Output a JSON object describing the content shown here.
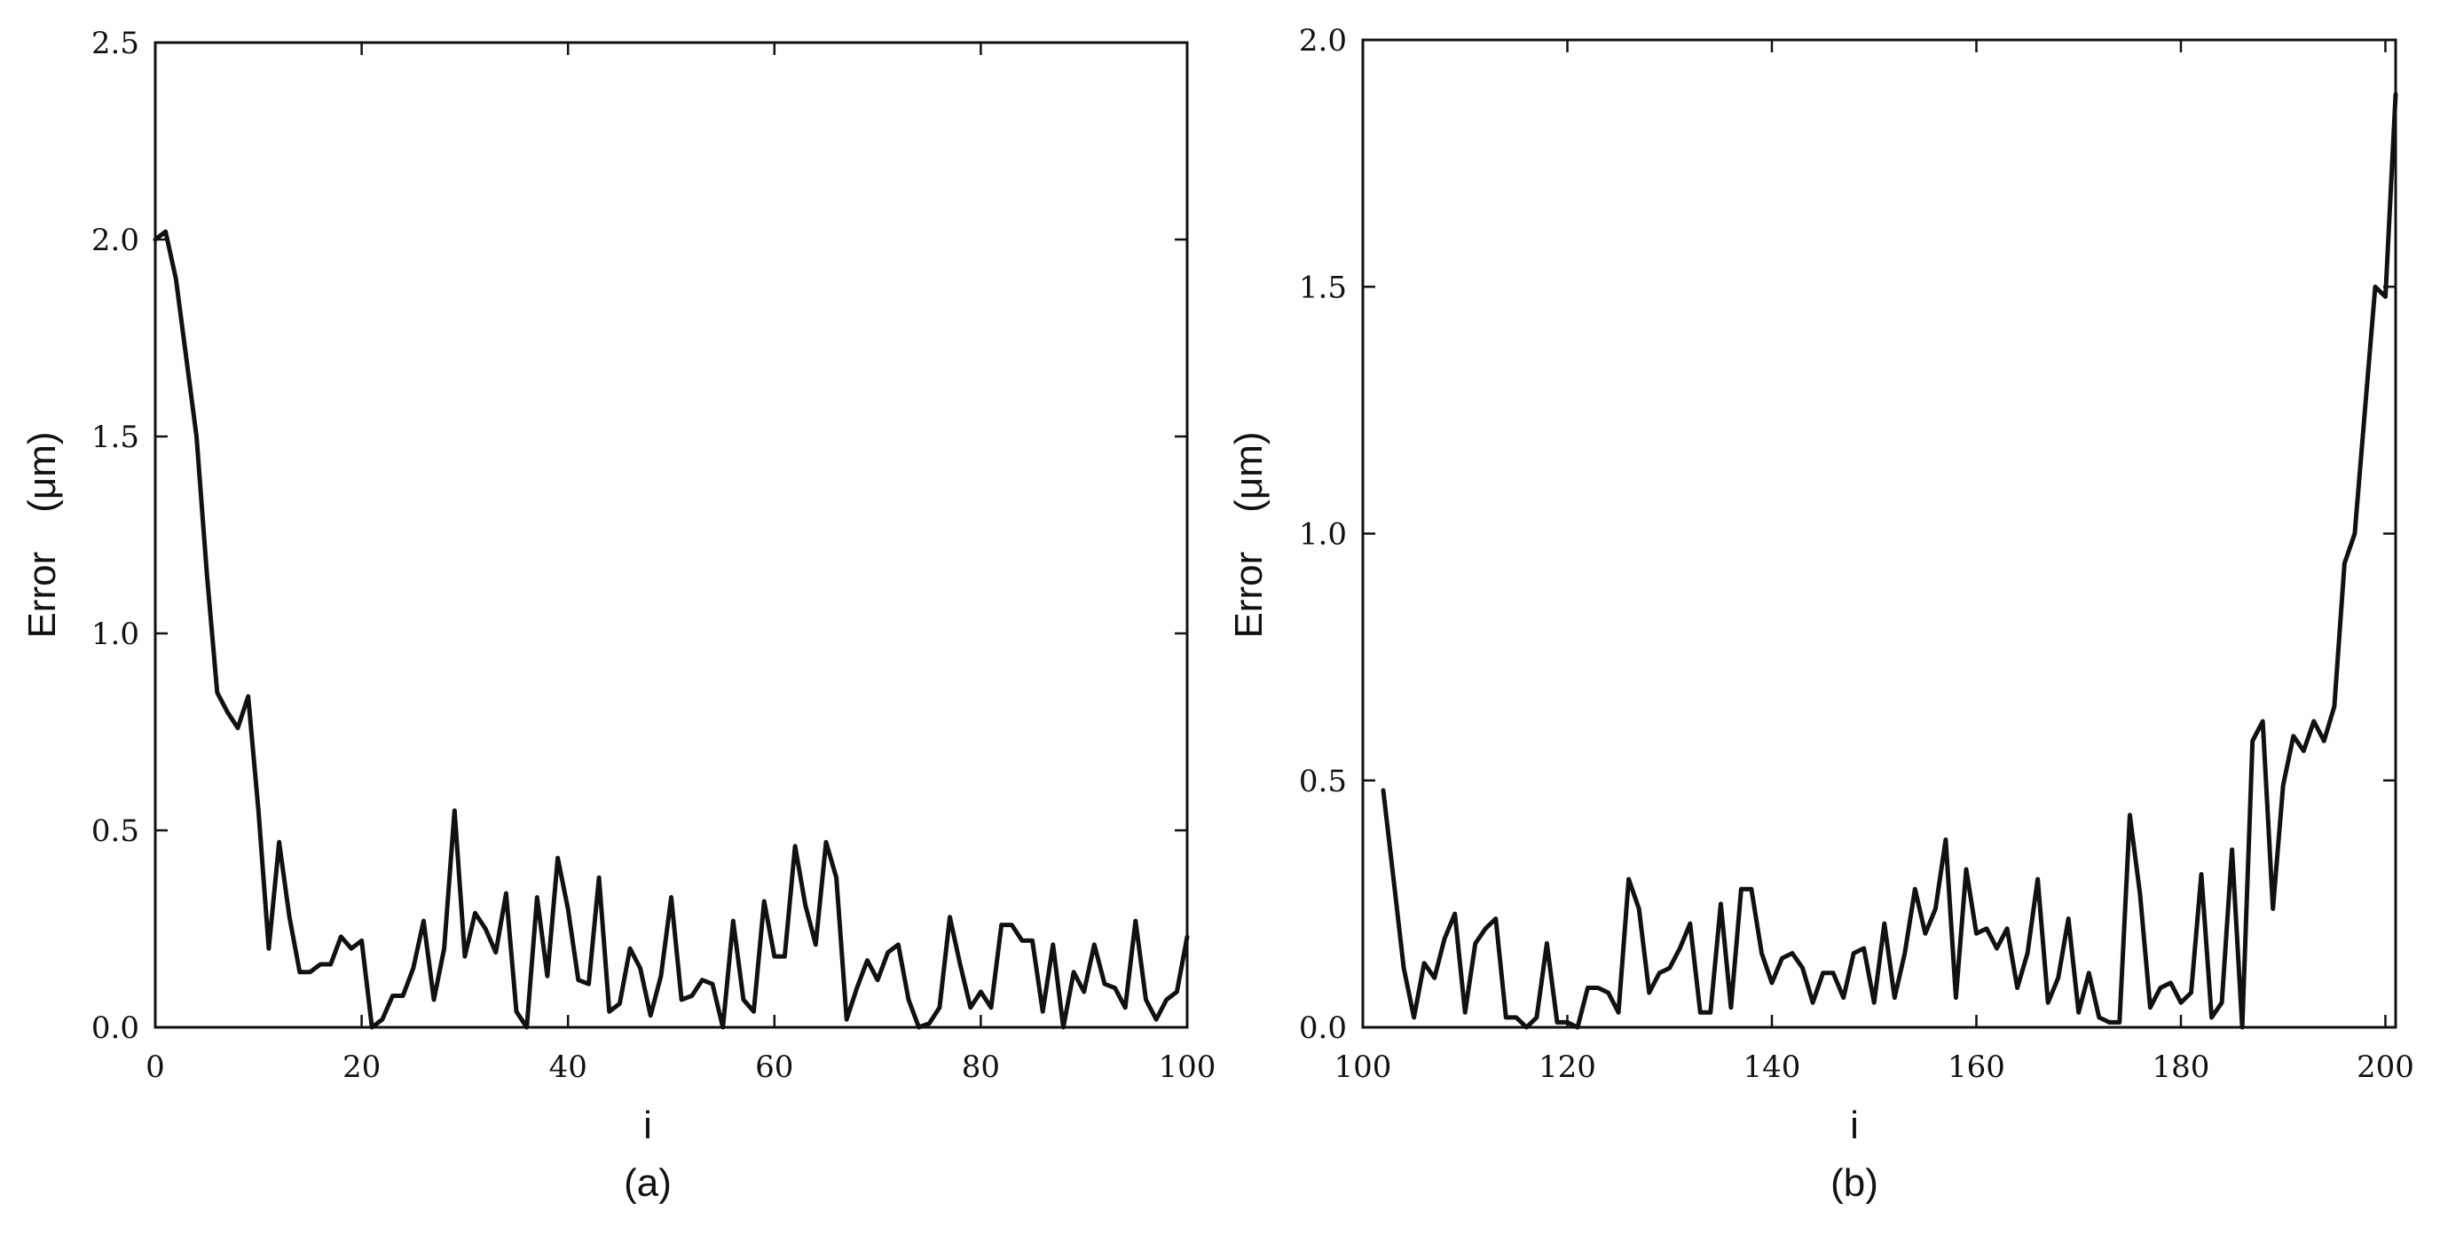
{
  "chart_data": [
    {
      "type": "line",
      "panel_label": "(a)",
      "xlabel": "i",
      "ylabel": "Error　(μm)",
      "xlim": [
        0,
        100
      ],
      "ylim": [
        0,
        2.5
      ],
      "x_ticks": [
        0,
        20,
        40,
        60,
        80,
        100
      ],
      "y_ticks": [
        0.0,
        0.5,
        1.0,
        1.5,
        2.0,
        2.5
      ],
      "y_tick_labels": [
        "0.0",
        "0.5",
        "1.0",
        "1.5",
        "2.0",
        "2.5"
      ],
      "x_tick_labels": [
        "0",
        "20",
        "40",
        "60",
        "80",
        "100"
      ],
      "series": [
        {
          "x": [
            0,
            1,
            2,
            3,
            4,
            5,
            6,
            7,
            8,
            9,
            10,
            11,
            12,
            13,
            14,
            15,
            16,
            17,
            18,
            19,
            20,
            21,
            22,
            23,
            24,
            25,
            26,
            27,
            28,
            29,
            30,
            31,
            32,
            33,
            34,
            35,
            36,
            37,
            38,
            39,
            40,
            41,
            42,
            43,
            44,
            45,
            46,
            47,
            48,
            49,
            50,
            51,
            52,
            53,
            54,
            55,
            56,
            57,
            58,
            59,
            60,
            61,
            62,
            63,
            64,
            65,
            66,
            67,
            68,
            69,
            70,
            71,
            72,
            73,
            74,
            75,
            76,
            77,
            78,
            79,
            80,
            81,
            82,
            83,
            84,
            85,
            86,
            87,
            88,
            89,
            90,
            91,
            92,
            93,
            94,
            95,
            96,
            97,
            98,
            99,
            100
          ],
          "y": [
            2.0,
            2.02,
            1.9,
            1.7,
            1.5,
            1.15,
            0.85,
            0.8,
            0.76,
            0.84,
            0.55,
            0.2,
            0.47,
            0.28,
            0.14,
            0.14,
            0.16,
            0.16,
            0.23,
            0.2,
            0.22,
            0.0,
            0.02,
            0.08,
            0.08,
            0.15,
            0.27,
            0.07,
            0.2,
            0.55,
            0.18,
            0.29,
            0.25,
            0.19,
            0.34,
            0.04,
            0.0,
            0.33,
            0.13,
            0.43,
            0.3,
            0.12,
            0.11,
            0.38,
            0.04,
            0.06,
            0.2,
            0.15,
            0.03,
            0.13,
            0.33,
            0.07,
            0.08,
            0.12,
            0.11,
            0.0,
            0.27,
            0.07,
            0.04,
            0.32,
            0.18,
            0.18,
            0.46,
            0.31,
            0.21,
            0.47,
            0.38,
            0.02,
            0.1,
            0.17,
            0.12,
            0.19,
            0.21,
            0.07,
            0.0,
            0.01,
            0.05,
            0.28,
            0.16,
            0.05,
            0.09,
            0.05,
            0.26,
            0.26,
            0.22,
            0.22,
            0.04,
            0.21,
            0.0,
            0.14,
            0.09,
            0.21,
            0.11,
            0.1,
            0.05,
            0.27,
            0.07,
            0.02,
            0.07,
            0.09,
            0.23
          ]
        }
      ]
    },
    {
      "type": "line",
      "panel_label": "(b)",
      "xlabel": "i",
      "ylabel": "Error　(μm)",
      "xlim": [
        100,
        201
      ],
      "ylim": [
        0,
        2.0
      ],
      "x_ticks": [
        100,
        120,
        140,
        160,
        180,
        200
      ],
      "y_ticks": [
        0.0,
        0.5,
        1.0,
        1.5,
        2.0
      ],
      "y_tick_labels": [
        "0.0",
        "0.5",
        "1.0",
        "1.5",
        "2.0"
      ],
      "x_tick_labels": [
        "100",
        "120",
        "140",
        "160",
        "180",
        "200"
      ],
      "series": [
        {
          "x": [
            102,
            103,
            104,
            105,
            106,
            107,
            108,
            109,
            110,
            111,
            112,
            113,
            114,
            115,
            116,
            117,
            118,
            119,
            120,
            121,
            122,
            123,
            124,
            125,
            126,
            127,
            128,
            129,
            130,
            131,
            132,
            133,
            134,
            135,
            136,
            137,
            138,
            139,
            140,
            141,
            142,
            143,
            144,
            145,
            146,
            147,
            148,
            149,
            150,
            151,
            152,
            153,
            154,
            155,
            156,
            157,
            158,
            159,
            160,
            161,
            162,
            163,
            164,
            165,
            166,
            167,
            168,
            169,
            170,
            171,
            172,
            173,
            174,
            175,
            176,
            177,
            178,
            179,
            180,
            181,
            182,
            183,
            184,
            185,
            186,
            187,
            188,
            189,
            190,
            191,
            192,
            193,
            194,
            195,
            196,
            197,
            198,
            199,
            200,
            201
          ],
          "y": [
            0.48,
            0.3,
            0.12,
            0.02,
            0.13,
            0.1,
            0.18,
            0.23,
            0.03,
            0.17,
            0.2,
            0.22,
            0.02,
            0.02,
            0.0,
            0.02,
            0.17,
            0.01,
            0.01,
            0.0,
            0.08,
            0.08,
            0.07,
            0.03,
            0.3,
            0.24,
            0.07,
            0.11,
            0.12,
            0.16,
            0.21,
            0.03,
            0.03,
            0.25,
            0.04,
            0.28,
            0.28,
            0.15,
            0.09,
            0.14,
            0.15,
            0.12,
            0.05,
            0.11,
            0.11,
            0.06,
            0.15,
            0.16,
            0.05,
            0.21,
            0.06,
            0.15,
            0.28,
            0.19,
            0.24,
            0.38,
            0.06,
            0.32,
            0.19,
            0.2,
            0.16,
            0.2,
            0.08,
            0.15,
            0.3,
            0.05,
            0.1,
            0.22,
            0.03,
            0.11,
            0.02,
            0.01,
            0.01,
            0.43,
            0.27,
            0.04,
            0.08,
            0.09,
            0.05,
            0.07,
            0.31,
            0.02,
            0.05,
            0.36,
            0.0,
            0.58,
            0.62,
            0.24,
            0.49,
            0.59,
            0.56,
            0.62,
            0.58,
            0.65,
            0.94,
            1.0,
            1.25,
            1.5,
            1.48,
            1.89
          ]
        }
      ]
    }
  ]
}
